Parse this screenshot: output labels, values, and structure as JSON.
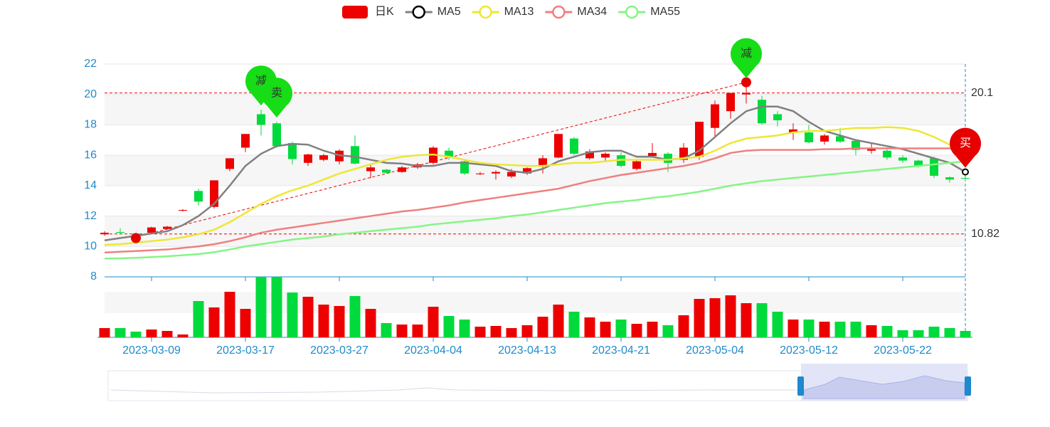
{
  "chart_data": {
    "type": "candlestick",
    "categories": [
      null,
      null,
      null,
      "2023-03-09",
      null,
      null,
      null,
      null,
      null,
      "2023-03-17",
      null,
      null,
      null,
      null,
      null,
      "2023-03-27",
      null,
      null,
      null,
      null,
      null,
      "2023-04-04",
      null,
      null,
      null,
      null,
      null,
      "2023-04-13",
      null,
      null,
      null,
      null,
      null,
      "2023-04-21",
      null,
      null,
      null,
      null,
      null,
      "2023-05-04",
      null,
      null,
      null,
      null,
      null,
      "2023-05-12",
      null,
      null,
      null,
      null,
      null,
      "2023-05-22",
      null,
      null,
      null,
      null
    ],
    "ylim": [
      8,
      22
    ],
    "yticks": [
      8,
      10,
      12,
      14,
      16,
      18,
      20,
      22
    ],
    "grid": true,
    "up_color": "#ec0000",
    "down_color": "#00da3c",
    "series": [
      {
        "name": "日K",
        "color": "#ec0000",
        "values": [
          [
            10.8,
            10.9,
            10.7,
            11.0
          ],
          [
            10.95,
            10.9,
            10.8,
            11.2
          ],
          [
            10.85,
            10.8,
            10.6,
            10.9
          ],
          [
            10.9,
            11.25,
            10.8,
            11.3
          ],
          [
            11.15,
            11.3,
            11.1,
            11.35
          ],
          [
            12.35,
            12.4,
            12.3,
            12.45
          ],
          [
            13.65,
            12.95,
            12.7,
            13.8
          ],
          [
            12.6,
            14.35,
            12.5,
            14.35
          ],
          [
            15.1,
            15.8,
            14.95,
            15.8
          ],
          [
            16.5,
            17.4,
            16.2,
            17.4
          ],
          [
            18.7,
            18.0,
            17.3,
            19.0
          ],
          [
            18.1,
            16.6,
            16.5,
            18.2
          ],
          [
            16.8,
            15.75,
            15.4,
            16.9
          ],
          [
            15.5,
            16.05,
            15.3,
            16.1
          ],
          [
            15.7,
            16.0,
            15.6,
            16.1
          ],
          [
            15.6,
            16.3,
            15.4,
            16.4
          ],
          [
            16.6,
            15.45,
            15.4,
            17.3
          ],
          [
            14.95,
            15.2,
            14.5,
            15.4
          ],
          [
            15.05,
            14.85,
            14.8,
            15.1
          ],
          [
            14.9,
            15.2,
            14.85,
            15.3
          ],
          [
            15.2,
            15.4,
            15.1,
            15.5
          ],
          [
            15.5,
            16.5,
            15.4,
            16.6
          ],
          [
            16.3,
            15.85,
            15.7,
            16.5
          ],
          [
            15.6,
            14.8,
            14.7,
            15.7
          ],
          [
            14.75,
            14.8,
            14.7,
            14.9
          ],
          [
            14.8,
            14.9,
            14.4,
            15.0
          ],
          [
            14.6,
            14.9,
            14.5,
            15.1
          ],
          [
            14.8,
            15.15,
            14.7,
            15.2
          ],
          [
            15.3,
            15.8,
            14.8,
            16.0
          ],
          [
            15.85,
            17.4,
            15.8,
            17.4
          ],
          [
            17.1,
            16.1,
            16.0,
            17.2
          ],
          [
            15.8,
            16.25,
            15.7,
            16.4
          ],
          [
            15.85,
            16.1,
            15.6,
            16.2
          ],
          [
            16.0,
            15.3,
            15.2,
            16.2
          ],
          [
            15.1,
            15.6,
            15.0,
            15.7
          ],
          [
            15.95,
            16.15,
            15.9,
            16.8
          ],
          [
            16.1,
            15.5,
            14.9,
            16.2
          ],
          [
            15.7,
            16.5,
            15.5,
            16.8
          ],
          [
            15.9,
            18.2,
            15.7,
            18.2
          ],
          [
            17.8,
            19.35,
            17.2,
            19.6
          ],
          [
            18.9,
            20.1,
            18.4,
            20.1
          ],
          [
            20.0,
            20.1,
            19.4,
            20.8
          ],
          [
            19.65,
            18.1,
            18.0,
            19.9
          ],
          [
            18.7,
            18.3,
            17.9,
            18.9
          ],
          [
            17.5,
            17.7,
            17.0,
            18.1
          ],
          [
            17.5,
            16.85,
            16.8,
            18.0
          ],
          [
            16.9,
            17.3,
            16.7,
            17.4
          ],
          [
            17.25,
            16.9,
            16.8,
            17.8
          ],
          [
            16.95,
            16.35,
            16.0,
            17.0
          ],
          [
            16.3,
            16.45,
            16.1,
            16.8
          ],
          [
            16.3,
            15.85,
            15.7,
            16.4
          ],
          [
            15.85,
            15.65,
            15.5,
            16.0
          ],
          [
            15.65,
            15.3,
            15.2,
            15.7
          ],
          [
            15.8,
            14.65,
            14.5,
            15.9
          ],
          [
            14.55,
            14.4,
            14.2,
            14.6
          ],
          [
            14.5,
            14.45,
            14.3,
            14.6
          ]
        ]
      },
      {
        "name": "MA5",
        "color": "#808080",
        "values": [
          10.4,
          10.55,
          10.7,
          10.85,
          11.0,
          11.4,
          12.0,
          12.8,
          14.0,
          15.3,
          16.1,
          16.6,
          16.75,
          16.7,
          16.3,
          16.0,
          15.9,
          15.7,
          15.5,
          15.45,
          15.3,
          15.3,
          15.5,
          15.5,
          15.4,
          15.3,
          14.95,
          14.85,
          15.1,
          15.6,
          15.9,
          16.2,
          16.3,
          16.3,
          15.9,
          15.9,
          15.7,
          15.8,
          16.3,
          17.2,
          18.1,
          18.9,
          19.2,
          19.2,
          18.9,
          18.2,
          17.6,
          17.3,
          17.0,
          16.8,
          16.6,
          16.4,
          16.1,
          15.8,
          15.5,
          14.9
        ]
      },
      {
        "name": "MA13",
        "color": "#ede734",
        "values": [
          10.1,
          10.15,
          10.25,
          10.35,
          10.45,
          10.6,
          10.8,
          11.1,
          11.6,
          12.2,
          12.8,
          13.3,
          13.7,
          14.0,
          14.4,
          14.8,
          15.1,
          15.4,
          15.7,
          15.9,
          16.0,
          16.05,
          15.9,
          15.7,
          15.5,
          15.4,
          15.35,
          15.3,
          15.3,
          15.4,
          15.5,
          15.5,
          15.6,
          15.7,
          15.7,
          15.7,
          15.7,
          15.8,
          15.9,
          16.3,
          16.8,
          17.1,
          17.2,
          17.3,
          17.5,
          17.6,
          17.6,
          17.7,
          17.8,
          17.8,
          17.85,
          17.8,
          17.6,
          17.2,
          16.7,
          16.3
        ]
      },
      {
        "name": "MA34",
        "color": "#f07f7f",
        "values": [
          9.6,
          9.65,
          9.7,
          9.75,
          9.8,
          9.9,
          10.0,
          10.15,
          10.35,
          10.6,
          10.9,
          11.1,
          11.25,
          11.4,
          11.55,
          11.7,
          11.85,
          12.0,
          12.15,
          12.3,
          12.4,
          12.55,
          12.7,
          12.9,
          13.05,
          13.2,
          13.35,
          13.5,
          13.65,
          13.8,
          14.05,
          14.3,
          14.5,
          14.7,
          14.85,
          15.0,
          15.15,
          15.3,
          15.5,
          15.8,
          16.15,
          16.3,
          16.35,
          16.35,
          16.35,
          16.35,
          16.4,
          16.4,
          16.45,
          16.45,
          16.45,
          16.45,
          16.45,
          16.45,
          16.45,
          16.4
        ]
      },
      {
        "name": "MA55",
        "color": "#86f486",
        "values": [
          9.2,
          9.22,
          9.25,
          9.3,
          9.35,
          9.42,
          9.5,
          9.62,
          9.8,
          10.0,
          10.15,
          10.3,
          10.45,
          10.55,
          10.65,
          10.8,
          10.9,
          11.0,
          11.1,
          11.2,
          11.3,
          11.45,
          11.55,
          11.65,
          11.75,
          11.85,
          12.0,
          12.1,
          12.25,
          12.4,
          12.55,
          12.7,
          12.85,
          12.95,
          13.05,
          13.2,
          13.3,
          13.45,
          13.6,
          13.8,
          14.0,
          14.15,
          14.3,
          14.4,
          14.5,
          14.6,
          14.7,
          14.8,
          14.9,
          15.0,
          15.1,
          15.2,
          15.3,
          15.4,
          15.5,
          15.6
        ]
      }
    ],
    "volume": {
      "ylim": [
        0,
        64
      ],
      "values": [
        13,
        13,
        8,
        11,
        9,
        4,
        51,
        42,
        64,
        40,
        85,
        85,
        63,
        57,
        46,
        44,
        58,
        40,
        20,
        18,
        18,
        43,
        30,
        25,
        15,
        16,
        13,
        17,
        29,
        46,
        36,
        28,
        22,
        25,
        19,
        22,
        17,
        31,
        54,
        55,
        59,
        48,
        48,
        36,
        25,
        25,
        22,
        22,
        22,
        17,
        16,
        10,
        10,
        15,
        13,
        9
      ]
    },
    "mark_lines": [
      {
        "value": 20.1
      },
      {
        "value": 10.82
      }
    ],
    "trend_line": {
      "from": {
        "x_index": 2,
        "value": 10.62
      },
      "to": {
        "x_index": 41,
        "value": 20.8
      }
    },
    "dots": [
      {
        "x_index": 2,
        "value": 10.55
      },
      {
        "x_index": 41,
        "value": 20.8
      }
    ],
    "mark_points": [
      {
        "label": "减",
        "x_index": 10,
        "value": 19.0,
        "color": "#16dd16"
      },
      {
        "label": "卖",
        "x_index": 11,
        "value": 18.2,
        "color": "#16dd16"
      },
      {
        "label": "减",
        "x_index": 41,
        "value": 20.8,
        "color": "#16dd16"
      },
      {
        "label": "买",
        "x_index": 55,
        "value": 14.9,
        "color": "#e60000"
      }
    ]
  }
}
